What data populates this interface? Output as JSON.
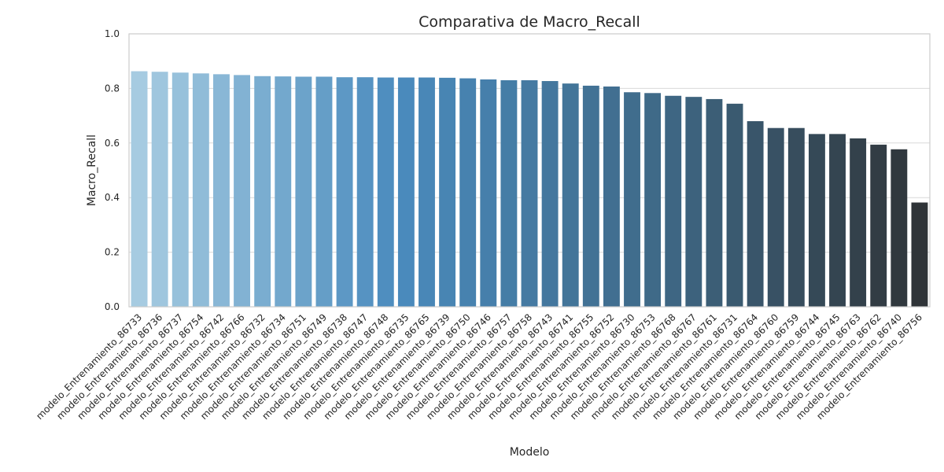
{
  "chart_data": {
    "type": "bar",
    "title": "Comparativa de Macro_Recall",
    "xlabel": "Modelo",
    "ylabel": "Macro_Recall",
    "ylim": [
      0,
      1.0
    ],
    "yticks": [
      "0.0",
      "0.2",
      "0.4",
      "0.6",
      "0.8",
      "1.0"
    ],
    "grid": true,
    "palette": [
      "#a6cbe1",
      "#4a8bbd",
      "#3f6987",
      "#2f3438"
    ],
    "categories": [
      "modelo_Entrenamiento_86733",
      "modelo_Entrenamiento_86736",
      "modelo_Entrenamiento_86737",
      "modelo_Entrenamiento_86754",
      "modelo_Entrenamiento_86742",
      "modelo_Entrenamiento_86766",
      "modelo_Entrenamiento_86732",
      "modelo_Entrenamiento_86734",
      "modelo_Entrenamiento_86751",
      "modelo_Entrenamiento_86749",
      "modelo_Entrenamiento_86738",
      "modelo_Entrenamiento_86747",
      "modelo_Entrenamiento_86748",
      "modelo_Entrenamiento_86735",
      "modelo_Entrenamiento_86765",
      "modelo_Entrenamiento_86739",
      "modelo_Entrenamiento_86750",
      "modelo_Entrenamiento_86746",
      "modelo_Entrenamiento_86757",
      "modelo_Entrenamiento_86758",
      "modelo_Entrenamiento_86743",
      "modelo_Entrenamiento_86741",
      "modelo_Entrenamiento_86755",
      "modelo_Entrenamiento_86752",
      "modelo_Entrenamiento_86730",
      "modelo_Entrenamiento_86753",
      "modelo_Entrenamiento_86768",
      "modelo_Entrenamiento_86767",
      "modelo_Entrenamiento_86761",
      "modelo_Entrenamiento_86731",
      "modelo_Entrenamiento_86764",
      "modelo_Entrenamiento_86760",
      "modelo_Entrenamiento_86759",
      "modelo_Entrenamiento_86744",
      "modelo_Entrenamiento_86745",
      "modelo_Entrenamiento_86763",
      "modelo_Entrenamiento_86762",
      "modelo_Entrenamiento_86740",
      "modelo_Entrenamiento_86756"
    ],
    "values": [
      0.863,
      0.861,
      0.858,
      0.855,
      0.852,
      0.849,
      0.845,
      0.844,
      0.843,
      0.843,
      0.841,
      0.841,
      0.84,
      0.84,
      0.84,
      0.839,
      0.837,
      0.833,
      0.83,
      0.83,
      0.827,
      0.818,
      0.81,
      0.807,
      0.786,
      0.783,
      0.773,
      0.769,
      0.761,
      0.744,
      0.68,
      0.655,
      0.655,
      0.633,
      0.633,
      0.617,
      0.594,
      0.577,
      0.382
    ]
  }
}
